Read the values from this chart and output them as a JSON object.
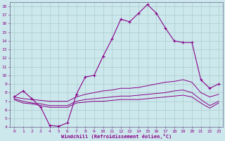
{
  "xlabel": "Windchill (Refroidissement éolien,°C)",
  "bg_color": "#cce8ec",
  "grid_color": "#aacccc",
  "line_color": "#880088",
  "xlim": [
    -0.5,
    23.5
  ],
  "ylim": [
    4,
    18.5
  ],
  "yticks": [
    4,
    5,
    6,
    7,
    8,
    9,
    10,
    11,
    12,
    13,
    14,
    15,
    16,
    17,
    18
  ],
  "xticks": [
    0,
    1,
    2,
    3,
    4,
    5,
    6,
    7,
    8,
    9,
    10,
    11,
    12,
    13,
    14,
    15,
    16,
    17,
    18,
    19,
    20,
    21,
    22,
    23
  ],
  "line1_x": [
    0,
    1,
    2,
    3,
    4,
    5,
    6,
    7,
    8,
    9,
    10,
    11,
    12,
    13,
    14,
    15,
    16,
    17,
    18,
    19,
    20,
    21,
    22,
    23
  ],
  "line1_y": [
    7.5,
    8.2,
    7.3,
    6.3,
    4.2,
    4.1,
    4.5,
    7.8,
    9.8,
    10.0,
    12.2,
    14.2,
    16.5,
    16.2,
    17.2,
    18.2,
    17.2,
    15.5,
    14.0,
    13.8,
    13.8,
    9.5,
    8.5,
    9.0
  ],
  "line2_x": [
    0,
    1,
    2,
    3,
    4,
    5,
    6,
    7,
    8,
    9,
    10,
    11,
    12,
    13,
    14,
    15,
    16,
    17,
    18,
    19,
    20,
    21,
    22,
    23
  ],
  "line2_y": [
    7.5,
    7.3,
    7.2,
    7.1,
    7.0,
    7.0,
    7.0,
    7.5,
    7.8,
    8.0,
    8.2,
    8.3,
    8.5,
    8.5,
    8.6,
    8.8,
    9.0,
    9.2,
    9.3,
    9.5,
    9.2,
    8.0,
    7.5,
    7.8
  ],
  "line3_x": [
    0,
    1,
    2,
    3,
    4,
    5,
    6,
    7,
    8,
    9,
    10,
    11,
    12,
    13,
    14,
    15,
    16,
    17,
    18,
    19,
    20,
    21,
    22,
    23
  ],
  "line3_y": [
    7.3,
    7.0,
    6.8,
    6.7,
    6.5,
    6.5,
    6.5,
    7.0,
    7.2,
    7.3,
    7.4,
    7.5,
    7.6,
    7.6,
    7.7,
    7.8,
    7.9,
    8.0,
    8.2,
    8.3,
    8.0,
    7.2,
    6.5,
    7.0
  ],
  "line4_x": [
    0,
    1,
    2,
    3,
    4,
    5,
    6,
    7,
    8,
    9,
    10,
    11,
    12,
    13,
    14,
    15,
    16,
    17,
    18,
    19,
    20,
    21,
    22,
    23
  ],
  "line4_y": [
    7.2,
    6.8,
    6.7,
    6.5,
    6.3,
    6.3,
    6.3,
    6.8,
    6.9,
    7.0,
    7.0,
    7.1,
    7.2,
    7.2,
    7.2,
    7.3,
    7.4,
    7.5,
    7.6,
    7.7,
    7.5,
    6.8,
    6.2,
    6.8
  ]
}
